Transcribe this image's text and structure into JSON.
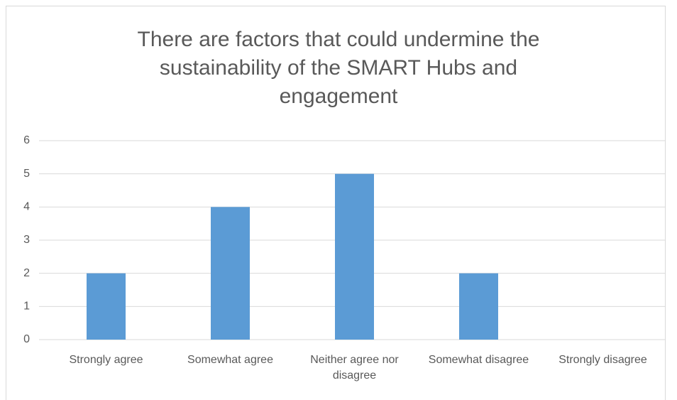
{
  "chart_data": {
    "type": "bar",
    "title": "There are factors that could undermine the sustainability of the SMART Hubs and engagement",
    "categories": [
      "Strongly agree",
      "Somewhat agree",
      "Neither agree nor disagree",
      "Somewhat disagree",
      "Strongly disagree"
    ],
    "values": [
      2,
      4,
      5,
      2,
      0
    ],
    "color": "#5b9bd5",
    "ylim": [
      0,
      6
    ],
    "yticks": [
      0,
      1,
      2,
      3,
      4,
      5,
      6
    ],
    "grid": true
  }
}
